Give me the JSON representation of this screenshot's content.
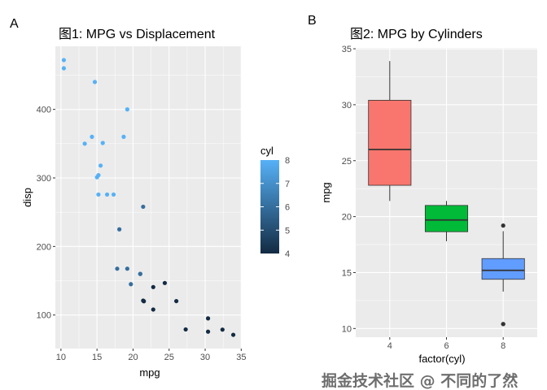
{
  "tags": {
    "a": "A",
    "b": "B"
  },
  "watermark": "掘金技术社区 @ 不同的了然",
  "chart_data": [
    {
      "type": "scatter",
      "title": "图1: MPG vs Displacement",
      "xlabel": "mpg",
      "ylabel": "disp",
      "xlim": [
        9.225,
        35.075
      ],
      "ylim": [
        51.06,
        492.05
      ],
      "xticks": [
        10,
        15,
        20,
        25,
        30,
        35
      ],
      "yticks": [
        100,
        200,
        300,
        400
      ],
      "grid": true,
      "color_scale": {
        "title": "cyl",
        "low": "#132B43",
        "high": "#56B1F7",
        "range": [
          4,
          8
        ],
        "ticks": [
          4,
          5,
          6,
          7,
          8
        ]
      },
      "legend": "right",
      "points": [
        [
          21.0,
          160,
          6
        ],
        [
          21.0,
          160,
          6
        ],
        [
          22.8,
          108,
          4
        ],
        [
          21.4,
          258,
          6
        ],
        [
          18.7,
          360,
          8
        ],
        [
          18.1,
          225,
          6
        ],
        [
          14.3,
          360,
          8
        ],
        [
          24.4,
          146.7,
          4
        ],
        [
          22.8,
          140.8,
          4
        ],
        [
          19.2,
          167.6,
          6
        ],
        [
          17.8,
          167.6,
          6
        ],
        [
          16.4,
          275.8,
          8
        ],
        [
          17.3,
          275.8,
          8
        ],
        [
          15.2,
          275.8,
          8
        ],
        [
          10.4,
          472,
          8
        ],
        [
          10.4,
          460,
          8
        ],
        [
          14.7,
          440,
          8
        ],
        [
          32.4,
          78.7,
          4
        ],
        [
          30.4,
          75.7,
          4
        ],
        [
          33.9,
          71.1,
          4
        ],
        [
          21.5,
          120.1,
          4
        ],
        [
          15.5,
          318,
          8
        ],
        [
          15.2,
          304,
          8
        ],
        [
          13.3,
          350,
          8
        ],
        [
          19.2,
          400,
          8
        ],
        [
          27.3,
          79,
          4
        ],
        [
          26.0,
          120.3,
          4
        ],
        [
          30.4,
          95.1,
          4
        ],
        [
          15.8,
          351,
          8
        ],
        [
          19.7,
          145,
          6
        ],
        [
          15.0,
          301,
          8
        ],
        [
          21.4,
          121,
          4
        ]
      ]
    },
    {
      "type": "box",
      "title": "图2: MPG by Cylinders",
      "xlabel": "factor(cyl)",
      "ylabel": "mpg",
      "ylim": [
        9.225,
        35.075
      ],
      "yticks": [
        10,
        15,
        20,
        25,
        30,
        35
      ],
      "grid": true,
      "categories": [
        "4",
        "6",
        "8"
      ],
      "boxes": [
        {
          "min": 21.4,
          "q1": 22.8,
          "median": 26.0,
          "q3": 30.4,
          "max": 33.9,
          "outliers": [],
          "color": "#F8766D"
        },
        {
          "min": 17.8,
          "q1": 18.65,
          "median": 19.7,
          "q3": 21.0,
          "max": 21.4,
          "outliers": [],
          "color": "#00BA38"
        },
        {
          "min": 13.3,
          "q1": 14.4,
          "median": 15.2,
          "q3": 16.25,
          "max": 18.7,
          "outliers": [
            10.4,
            10.4,
            19.2
          ],
          "color": "#619CFF"
        }
      ]
    }
  ]
}
